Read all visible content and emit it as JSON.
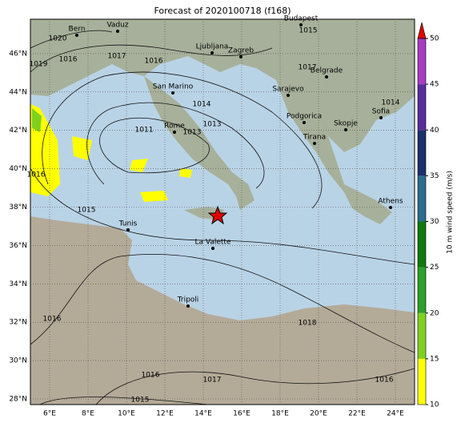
{
  "title": "Forecast of 2020100718 (f168)",
  "map": {
    "lon_ticks": [
      {
        "value": 6,
        "label": "6°E"
      },
      {
        "value": 8,
        "label": "8°E"
      },
      {
        "value": 10,
        "label": "10°E"
      },
      {
        "value": 12,
        "label": "12°E"
      },
      {
        "value": 14,
        "label": "14°E"
      },
      {
        "value": 16,
        "label": "16°E"
      },
      {
        "value": 18,
        "label": "18°E"
      },
      {
        "value": 20,
        "label": "20°E"
      },
      {
        "value": 22,
        "label": "22°E"
      },
      {
        "value": 24,
        "label": "24°E"
      }
    ],
    "lat_ticks": [
      {
        "value": 28,
        "label": "28°N"
      },
      {
        "value": 30,
        "label": "30°N"
      },
      {
        "value": 32,
        "label": "32°N"
      },
      {
        "value": 34,
        "label": "34°N"
      },
      {
        "value": 36,
        "label": "36°N"
      },
      {
        "value": 38,
        "label": "38°N"
      },
      {
        "value": 40,
        "label": "40°N"
      },
      {
        "value": 42,
        "label": "42°N"
      },
      {
        "value": 44,
        "label": "44°N"
      },
      {
        "value": 46,
        "label": "46°N"
      }
    ],
    "cities": [
      "Budapest",
      "Vaduz",
      "Bern",
      "Ljubljana",
      "Zagreb",
      "Belgrade",
      "San Marino",
      "Sarajevo",
      "Podgorica",
      "Sofia",
      "Rome",
      "Skopje",
      "Tirana",
      "Athens",
      "Tunis",
      "La Valette",
      "Tripoli"
    ],
    "isobar_labels": [
      1020,
      1016,
      1019,
      1017,
      1016,
      1015,
      1017,
      1014,
      1013,
      1011,
      1013,
      1014,
      1016,
      1015,
      1016,
      1018,
      1016,
      1017,
      1016,
      1015
    ]
  },
  "colorbar": {
    "label": "10 m wind speed (m/s)",
    "lim": [
      10,
      50
    ],
    "ticks": [
      10,
      15,
      20,
      25,
      30,
      35,
      40,
      45,
      50
    ],
    "colors": [
      "#ffff00",
      "#7fd11f",
      "#2ca02c",
      "#0f7a0f",
      "#2b6c8f",
      "#1b2f6b",
      "#5a2a9a",
      "#a83cc0"
    ],
    "extend_color": "#e00000"
  }
}
